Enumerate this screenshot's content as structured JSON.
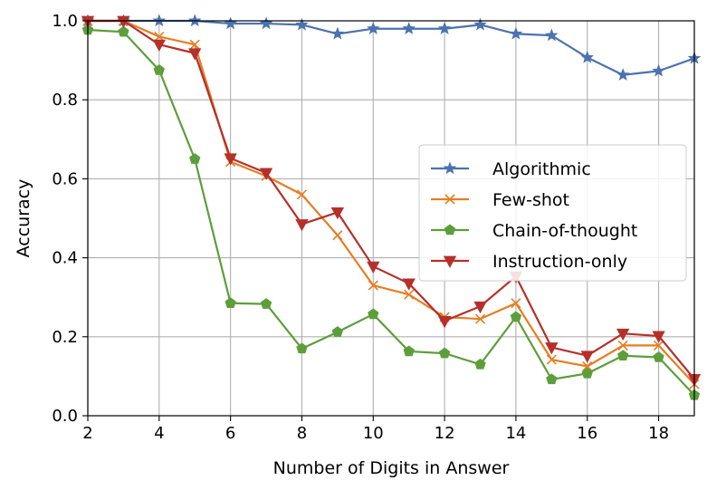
{
  "chart_data": {
    "type": "line",
    "xlabel": "Number of Digits in Answer",
    "ylabel": "Accuracy",
    "xlim": [
      2,
      19
    ],
    "ylim": [
      0,
      1.0
    ],
    "xticks": [
      "2",
      "4",
      "6",
      "8",
      "10",
      "12",
      "14",
      "16",
      "18"
    ],
    "yticks": [
      "0.0",
      "0.2",
      "0.4",
      "0.6",
      "0.8",
      "1.0"
    ],
    "grid": true,
    "legend_position": "center-right",
    "x": [
      2,
      3,
      4,
      5,
      6,
      7,
      8,
      9,
      10,
      11,
      12,
      13,
      14,
      15,
      16,
      17,
      18,
      19
    ],
    "series": [
      {
        "name": "Algorithmic",
        "color": "#4c72b0",
        "marker": "star",
        "values": [
          1.0,
          1.0,
          1.0,
          1.0,
          0.993,
          0.993,
          0.99,
          0.967,
          0.98,
          0.98,
          0.98,
          0.99,
          0.967,
          0.963,
          0.907,
          0.863,
          0.873,
          0.905
        ]
      },
      {
        "name": "Few-shot",
        "color": "#e67e22",
        "marker": "x",
        "values": [
          1.0,
          1.0,
          0.96,
          0.94,
          0.643,
          0.607,
          0.56,
          0.457,
          0.33,
          0.307,
          0.25,
          0.245,
          0.285,
          0.142,
          0.125,
          0.178,
          0.178,
          0.08
        ]
      },
      {
        "name": "Chain-of-thought",
        "color": "#5d9e3b",
        "marker": "pentagon",
        "values": [
          0.977,
          0.972,
          0.875,
          0.65,
          0.285,
          0.283,
          0.17,
          0.212,
          0.257,
          0.163,
          0.158,
          0.13,
          0.25,
          0.092,
          0.107,
          0.152,
          0.148,
          0.052
        ]
      },
      {
        "name": "Instruction-only",
        "color": "#b5302b",
        "marker": "triangle-down",
        "values": [
          1.0,
          1.0,
          0.94,
          0.918,
          0.652,
          0.615,
          0.485,
          0.515,
          0.378,
          0.335,
          0.24,
          0.277,
          0.353,
          0.173,
          0.152,
          0.208,
          0.202,
          0.093
        ]
      }
    ]
  }
}
